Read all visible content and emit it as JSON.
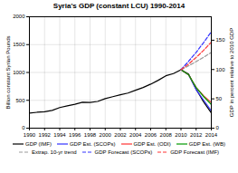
{
  "chart_data": {
    "type": "line",
    "title": "Syria's GDP (constant LCU) 1990-2014",
    "y_label": "Billion constant Syrian Pounds",
    "y2_label": "GDP in percent relative to 2010 GDP",
    "x": [
      1990,
      1991,
      1992,
      1993,
      1994,
      1995,
      1996,
      1997,
      1998,
      1999,
      2000,
      2001,
      2002,
      2003,
      2004,
      2005,
      2006,
      2007,
      2008,
      2009,
      2010,
      2011,
      2012,
      2013,
      2014
    ],
    "xlim": [
      1990,
      2014
    ],
    "xticks": [
      1990,
      1992,
      1994,
      1996,
      1998,
      2000,
      2002,
      2004,
      2006,
      2008,
      2010,
      2012,
      2014
    ],
    "ylim": [
      0,
      2000
    ],
    "yticks": [
      0,
      500,
      1000,
      1500,
      2000
    ],
    "y2lim": [
      0,
      190
    ],
    "y2ticks": [
      0,
      50,
      100,
      150
    ],
    "grid": true,
    "legend": "bottom",
    "series": [
      {
        "name": "GDP (IMF)",
        "color": "black",
        "line_style": "solid",
        "values": [
          270,
          285,
          295,
          320,
          370,
          400,
          430,
          465,
          460,
          480,
          530,
          565,
          600,
          630,
          680,
          730,
          790,
          860,
          940,
          980,
          1050,
          970,
          700,
          470,
          275
        ]
      },
      {
        "name": "GDP Est. (SCOPs)",
        "color": "#3333ff",
        "line_style": "solid",
        "values": [
          null,
          null,
          null,
          null,
          null,
          null,
          null,
          null,
          null,
          null,
          null,
          null,
          null,
          null,
          null,
          null,
          null,
          null,
          null,
          null,
          1050,
          960,
          690,
          500,
          310
        ]
      },
      {
        "name": "GDP Est. (ODI)",
        "color": "#ff3333",
        "line_style": "solid",
        "values": [
          null,
          null,
          null,
          null,
          null,
          null,
          null,
          null,
          null,
          null,
          null,
          null,
          null,
          null,
          null,
          null,
          null,
          null,
          null,
          null,
          1050,
          960,
          730,
          580,
          460
        ]
      },
      {
        "name": "GDP Est. (WB)",
        "color": "#009900",
        "line_style": "solid",
        "values": [
          null,
          null,
          null,
          null,
          null,
          null,
          null,
          null,
          null,
          null,
          null,
          null,
          null,
          null,
          null,
          null,
          null,
          null,
          null,
          null,
          1050,
          960,
          730,
          565,
          425
        ]
      },
      {
        "name": "Extrap. 10-yr trend",
        "color": "#999999",
        "line_style": "dashed",
        "values": [
          null,
          null,
          null,
          null,
          null,
          null,
          null,
          null,
          null,
          null,
          null,
          null,
          null,
          null,
          null,
          null,
          null,
          null,
          null,
          null,
          1050,
          1120,
          1195,
          1275,
          1360
        ]
      },
      {
        "name": "GDP Forecast (SCOPs)",
        "color": "#3333ff",
        "line_style": "dashed",
        "values": [
          null,
          null,
          null,
          null,
          null,
          null,
          null,
          null,
          null,
          null,
          null,
          null,
          null,
          null,
          null,
          null,
          null,
          null,
          null,
          null,
          1050,
          1200,
          1360,
          1540,
          1730
        ]
      },
      {
        "name": "GDP Forecast (IMF)",
        "color": "#ff3333",
        "line_style": "dashed",
        "values": [
          null,
          null,
          null,
          null,
          null,
          null,
          null,
          null,
          null,
          null,
          null,
          null,
          null,
          null,
          null,
          null,
          null,
          null,
          null,
          null,
          1050,
          1150,
          1270,
          1400,
          1545
        ]
      }
    ]
  }
}
